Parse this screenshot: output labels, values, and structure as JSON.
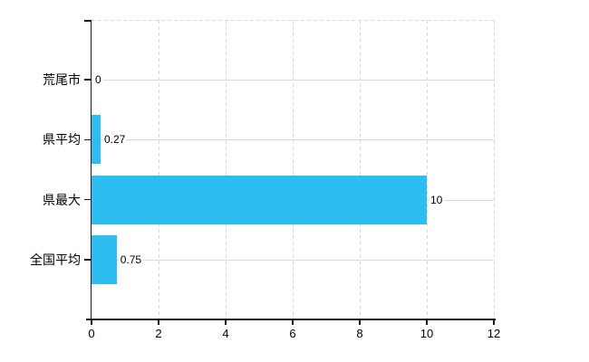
{
  "chart_data": {
    "type": "bar",
    "orientation": "horizontal",
    "title": "",
    "xlabel": "",
    "ylabel": "",
    "categories": [
      "荒尾市",
      "県平均",
      "県最大",
      "全国平均"
    ],
    "values": [
      0,
      0.27,
      10,
      0.75
    ],
    "value_labels": [
      "0",
      "0.27",
      "10",
      "0.75"
    ],
    "x_ticks": [
      0,
      2,
      4,
      6,
      8,
      10,
      12
    ],
    "x_tick_labels": [
      "0",
      "2",
      "4",
      "6",
      "8",
      "10",
      "12"
    ],
    "xlim": [
      0,
      12
    ],
    "grid": true,
    "grid_style": {
      "vertical": "dashed",
      "horizontal": "solid",
      "top_border": "dashed"
    },
    "legend": false,
    "colors": {
      "bar": "#2ebdf0",
      "grid": "#d9d9d9",
      "axis": "#1a1a1a",
      "text": "#000000",
      "background": "#ffffff"
    }
  }
}
